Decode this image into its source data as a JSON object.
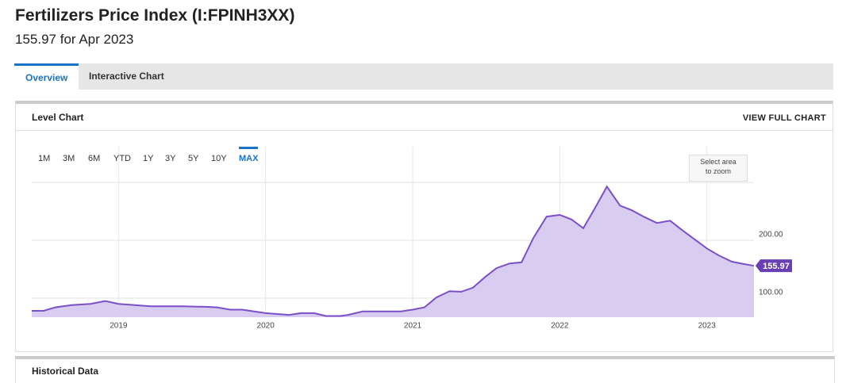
{
  "header": {
    "title": "Fertilizers Price Index (I:FPINH3XX)",
    "subtitle": "155.97 for Apr 2023"
  },
  "tabs": [
    "Overview",
    "Interactive Chart"
  ],
  "panel": {
    "title": "Level Chart",
    "link": "VIEW FULL CHART"
  },
  "range_buttons": [
    "1M",
    "3M",
    "6M",
    "YTD",
    "1Y",
    "3Y",
    "5Y",
    "10Y",
    "MAX"
  ],
  "zoom_hint": [
    "Select area",
    "to zoom"
  ],
  "next_panel": "Historical Data",
  "chart_data": {
    "type": "area",
    "color": "#7b4fc9",
    "fill": "#d8ccf1",
    "x": [
      2018.41,
      2018.49,
      2018.57,
      2018.68,
      2018.81,
      2018.91,
      2019.0,
      2019.11,
      2019.22,
      2019.43,
      2019.59,
      2019.67,
      2019.76,
      2019.84,
      2020.0,
      2020.16,
      2020.24,
      2020.33,
      2020.41,
      2020.51,
      2020.56,
      2020.66,
      2020.75,
      2020.92,
      2021.0,
      2021.08,
      2021.16,
      2021.25,
      2021.33,
      2021.41,
      2021.49,
      2021.57,
      2021.66,
      2021.74,
      2021.82,
      2021.91,
      2022.0,
      2022.08,
      2022.16,
      2022.24,
      2022.32,
      2022.41,
      2022.49,
      2022.57,
      2022.66,
      2022.75,
      2022.83,
      2022.91,
      2023.0,
      2023.08,
      2023.17,
      2023.25,
      2023.32
    ],
    "values": [
      78,
      78,
      84,
      88,
      90,
      95,
      90,
      88,
      86,
      86,
      85,
      84,
      80,
      80,
      74,
      71,
      74,
      74,
      69,
      69,
      71,
      77,
      77,
      77,
      80,
      84,
      101,
      112,
      111,
      118,
      136,
      152,
      160,
      162,
      204,
      241,
      244,
      236,
      221,
      256,
      293,
      260,
      252,
      241,
      230,
      234,
      218,
      203,
      186,
      174,
      163,
      159,
      155.97
    ],
    "xlim": [
      2018.41,
      2023.32
    ],
    "xticks": [
      2019,
      2020,
      2021,
      2022,
      2023
    ],
    "ylim": [
      67,
      362
    ],
    "yticks": [
      {
        "value": 100,
        "label": "100.00"
      },
      {
        "value": 200,
        "label": "200.00"
      }
    ],
    "grid_lines": [
      100,
      200,
      300
    ]
  }
}
